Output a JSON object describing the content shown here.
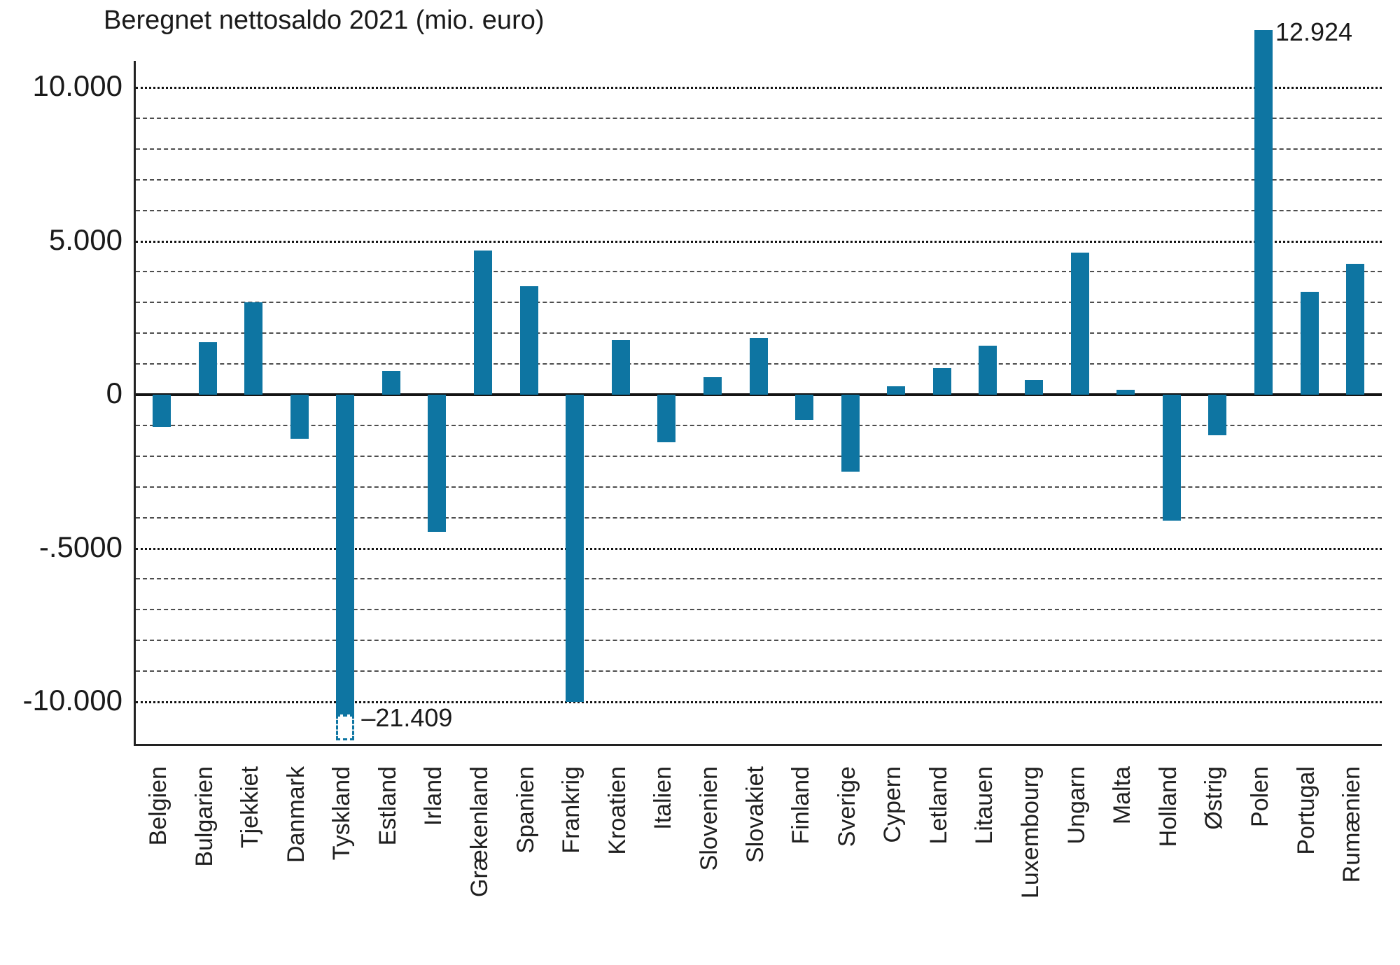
{
  "chart_data": {
    "type": "bar",
    "title": "Beregnet nettosaldo 2021 (mio. euro)",
    "categories": [
      "Belgien",
      "Bulgarien",
      "Tjekkiet",
      "Danmark",
      "Tyskland",
      "Estland",
      "Irland",
      "Grækenland",
      "Spanien",
      "Frankrig",
      "Kroatien",
      "Italien",
      "Slovenien",
      "Slovakiet",
      "Finland",
      "Sverige",
      "Cypern",
      "Letland",
      "Litauen",
      "Luxembourg",
      "Ungarn",
      "Malta",
      "Holland",
      "Østrig",
      "Polen",
      "Portugal",
      "Rumænien"
    ],
    "values": [
      -1050,
      1700,
      3000,
      -1430,
      -21409,
      780,
      -4460,
      4690,
      3530,
      -10000,
      1780,
      -1540,
      570,
      1840,
      -810,
      -2510,
      280,
      870,
      1590,
      470,
      4630,
      150,
      -4100,
      -1320,
      12924,
      3350,
      4260
    ],
    "bar_color": "#0e75a2",
    "xlabel": "",
    "ylabel": "",
    "ylim": [
      -11370,
      11870
    ],
    "yticks": [
      {
        "label": "10.000",
        "value": 10000
      },
      {
        "label": "5.000",
        "value": 5000
      },
      {
        "label": "0",
        "value": 0
      },
      {
        "label": "-.5000",
        "value": -5000
      },
      {
        "label": "-10.000",
        "value": -10000
      }
    ],
    "gridlines": {
      "minor_step": 1000,
      "major_step": 5000,
      "minor_on": true,
      "major_on": true
    },
    "legend": "none",
    "annotations": [
      {
        "category": "Polen",
        "text": "12.924",
        "position": "top-right"
      },
      {
        "category": "Tyskland",
        "text": "–21.409",
        "position": "bottom-right"
      }
    ],
    "truncated_bars": [
      {
        "category": "Tyskland",
        "style": "dashed-box-bottom"
      },
      {
        "category": "Polen",
        "style": "overflow-top"
      }
    ]
  }
}
